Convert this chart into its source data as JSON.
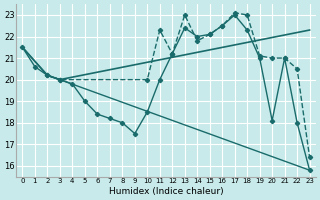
{
  "background_color": "#c8eaea",
  "grid_color": "#ffffff",
  "line_color": "#1a6b6b",
  "xlabel": "Humidex (Indice chaleur)",
  "xlim": [
    -0.5,
    23.5
  ],
  "ylim": [
    15.5,
    23.5
  ],
  "yticks": [
    16,
    17,
    18,
    19,
    20,
    21,
    22,
    23
  ],
  "xticks": [
    0,
    1,
    2,
    3,
    4,
    5,
    6,
    7,
    8,
    9,
    10,
    11,
    12,
    13,
    14,
    15,
    16,
    17,
    18,
    19,
    20,
    21,
    22,
    23
  ],
  "series": [
    {
      "x": [
        0,
        1,
        2,
        3,
        4,
        5,
        6,
        7,
        8,
        9,
        10,
        11,
        12,
        13,
        14,
        15,
        16,
        17,
        18,
        19,
        20,
        21,
        22,
        23
      ],
      "y": [
        21.5,
        20.6,
        20.2,
        20.0,
        19.8,
        19.0,
        18.4,
        18.2,
        18.0,
        17.5,
        18.5,
        20.0,
        21.2,
        22.4,
        22.0,
        22.1,
        22.5,
        23.0,
        22.3,
        21.0,
        18.1,
        21.0,
        18.0,
        15.8
      ],
      "linestyle": "-",
      "marker": true,
      "lw": 1.0
    },
    {
      "x": [
        0,
        2,
        3,
        23
      ],
      "y": [
        21.5,
        20.2,
        20.0,
        22.3
      ],
      "linestyle": "-",
      "marker": false,
      "lw": 1.2
    },
    {
      "x": [
        2,
        3,
        10,
        11,
        12,
        13,
        14,
        15,
        16,
        17,
        18,
        19,
        20,
        21,
        22,
        23
      ],
      "y": [
        20.2,
        20.0,
        20.0,
        22.3,
        21.2,
        23.0,
        21.8,
        22.1,
        22.5,
        23.1,
        23.0,
        21.1,
        21.0,
        21.0,
        20.5,
        16.4
      ],
      "linestyle": "--",
      "marker": true,
      "lw": 1.0
    },
    {
      "x": [
        0,
        2,
        3,
        23
      ],
      "y": [
        21.5,
        20.2,
        20.0,
        15.8
      ],
      "linestyle": "-",
      "marker": false,
      "lw": 1.0
    }
  ]
}
